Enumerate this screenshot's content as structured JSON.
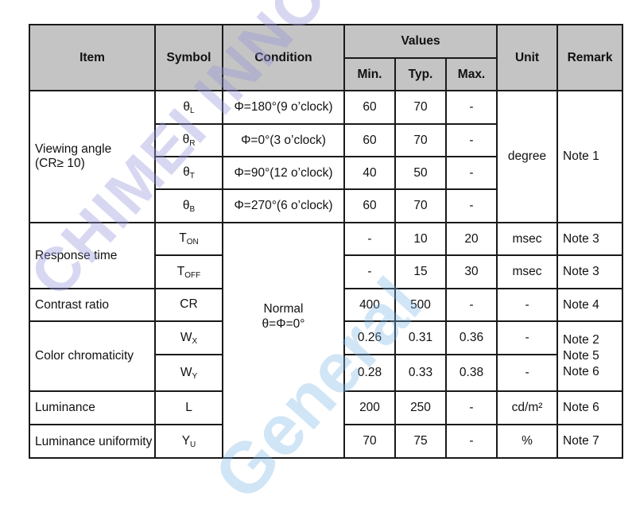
{
  "header": {
    "item": "Item",
    "symbol": "Symbol",
    "condition": "Condition",
    "values": "Values",
    "min": "Min.",
    "typ": "Typ.",
    "max": "Max.",
    "unit": "Unit",
    "remark": "Remark"
  },
  "groups": {
    "viewing": "Viewing angle",
    "viewing2": "(CR≥ 10)",
    "response": "Response time",
    "contrast": "Contrast ratio",
    "color": "Color chromaticity",
    "luminance": "Luminance",
    "uniformity": "Luminance uniformity"
  },
  "common": {
    "normal": "Normal",
    "normal2": "θ=Φ=0°",
    "degree": "degree",
    "note1": "Note 1",
    "note_color": [
      "Note 2",
      "Note 5",
      "Note 6"
    ]
  },
  "rows": [
    {
      "sym": "θ",
      "sub": "L",
      "cond": "Φ=180°(9 o’clock)",
      "min": "60",
      "typ": "70",
      "max": "-"
    },
    {
      "sym": "θ",
      "sub": "R",
      "cond": "Φ=0°(3 o’clock)",
      "min": "60",
      "typ": "70",
      "max": "-"
    },
    {
      "sym": "θ",
      "sub": "T",
      "cond": "Φ=90°(12 o’clock)",
      "min": "40",
      "typ": "50",
      "max": "-"
    },
    {
      "sym": "θ",
      "sub": "B",
      "cond": "Φ=270°(6 o’clock)",
      "min": "60",
      "typ": "70",
      "max": "-"
    },
    {
      "sym": "T",
      "sub": "ON",
      "min": "-",
      "typ": "10",
      "max": "20",
      "unit": "msec",
      "remark": "Note 3"
    },
    {
      "sym": "T",
      "sub": "OFF",
      "min": "-",
      "typ": "15",
      "max": "30",
      "unit": "msec",
      "remark": "Note 3"
    },
    {
      "sym": "CR",
      "sub": "",
      "min": "400",
      "typ": "500",
      "max": "-",
      "unit": "-",
      "remark": "Note 4"
    },
    {
      "sym": "W",
      "sub": "X",
      "min": "0.26",
      "typ": "0.31",
      "max": "0.36",
      "unit": "-"
    },
    {
      "sym": "W",
      "sub": "Y",
      "min": "0.28",
      "typ": "0.33",
      "max": "0.38",
      "unit": "-"
    },
    {
      "sym": "L",
      "sub": "",
      "min": "200",
      "typ": "250",
      "max": "-",
      "unit": "cd/m²",
      "remark": "Note 6"
    },
    {
      "sym": "Y",
      "sub": "U",
      "min": "70",
      "typ": "75",
      "max": "-",
      "unit": "%",
      "remark": "Note 7"
    }
  ],
  "watermark": {
    "brand": "CHIMEI INNOLUX",
    "label": "General"
  }
}
